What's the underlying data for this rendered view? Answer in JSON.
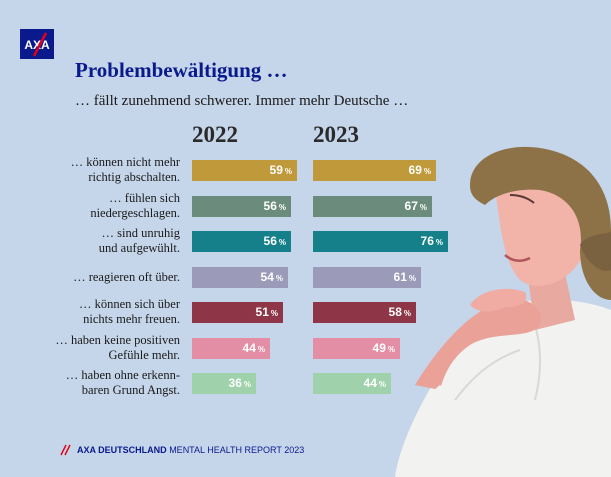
{
  "header": {
    "title": "Problembewältigung …",
    "subtitle": "… fällt zunehmend schwerer. Immer mehr Deutsche …"
  },
  "logo": {
    "text": "AXA",
    "colors": {
      "box": "#0a1a8c",
      "slash": "#e2001a"
    }
  },
  "footer": {
    "brand": "AXA DEUTSCHLAND",
    "report": "MENTAL HEALTH REPORT 2023"
  },
  "chart_data": {
    "type": "bar",
    "orientation": "horizontal",
    "categories": [
      "… können nicht mehr\nrichtig abschalten.",
      "… fühlen sich\nniedergeschlagen.",
      "… sind unruhig\nund aufgewühlt.",
      "… reagieren oft über.",
      "… können sich über\nnichts mehr freuen.",
      "… haben keine positiven\nGefühle mehr.",
      "… haben ohne erkenn-\nbaren Grund Angst."
    ],
    "series": [
      {
        "name": "2022",
        "values": [
          59,
          56,
          56,
          54,
          51,
          44,
          36
        ]
      },
      {
        "name": "2023",
        "values": [
          69,
          67,
          76,
          61,
          58,
          49,
          44
        ]
      }
    ],
    "unit": "%",
    "bar_colors": [
      "#c09a3a",
      "#6b8c7d",
      "#157f8a",
      "#9b9ab8",
      "#8e3648",
      "#e48ea6",
      "#9fd1ab"
    ]
  }
}
